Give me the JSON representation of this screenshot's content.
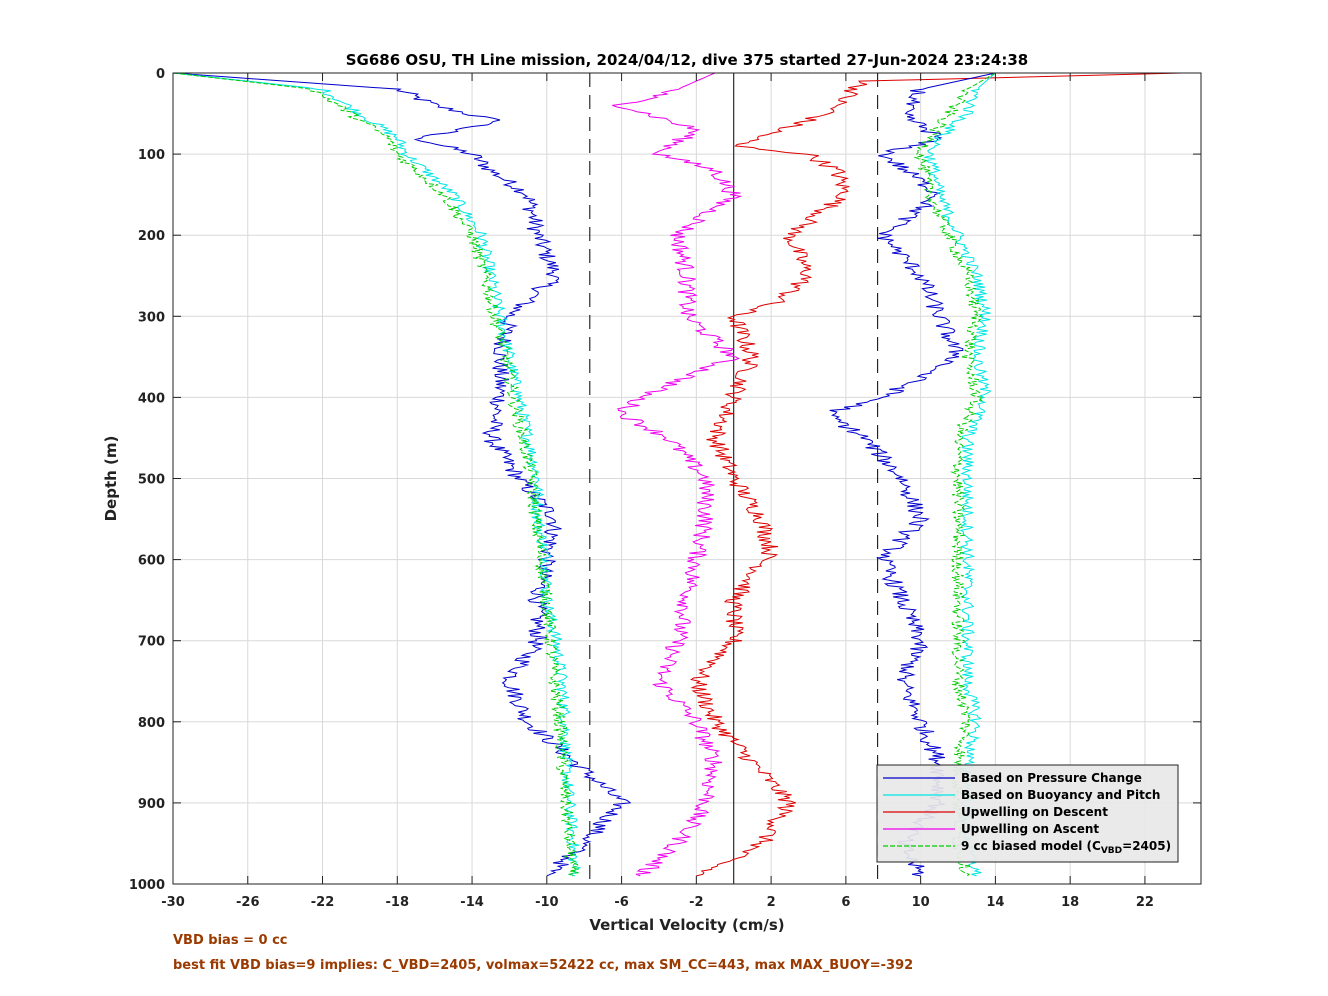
{
  "chart_data": {
    "type": "line",
    "title": "SG686 OSU, TH Line mission, 2024/04/12, dive 375 started 27-Jun-2024 23:24:38",
    "xlabel": "Vertical Velocity (cm/s)",
    "ylabel": "Depth (m)",
    "xlim": [
      -30,
      25
    ],
    "ylim": [
      1000,
      0
    ],
    "y_reversed": true,
    "grid": true,
    "xticks": [
      -30,
      -26,
      -22,
      -18,
      -14,
      -10,
      -6,
      -2,
      2,
      6,
      10,
      14,
      18,
      22
    ],
    "yticks": [
      0,
      100,
      200,
      300,
      400,
      500,
      600,
      700,
      800,
      900,
      1000
    ],
    "reference_lines": {
      "solid_vertical_x": 0,
      "dashed_vertical_x": [
        -7.7,
        7.7
      ]
    },
    "legend_position": "bottom-right",
    "series": [
      {
        "name": "Based on Pressure Change",
        "color": "#0000cc",
        "depth": [
          0,
          20,
          40,
          60,
          80,
          100,
          120,
          150,
          200,
          250,
          300,
          350,
          400,
          450,
          500,
          550,
          600,
          650,
          700,
          750,
          800,
          850,
          900,
          950,
          990
        ],
        "velocity": [
          -30,
          -18,
          -16,
          -12.5,
          -17,
          -14,
          -13,
          -11,
          -10.5,
          -9.5,
          -12,
          -12.5,
          -12.5,
          -13,
          -11.5,
          -9.5,
          -10,
          -10.5,
          -10.5,
          -12,
          -11,
          -8.5,
          -6,
          -8,
          -10
        ]
      },
      {
        "name": "Based on Buoyancy and Pitch",
        "color": "#00e5e5",
        "depth": [
          0,
          20,
          50,
          80,
          100,
          150,
          200,
          250,
          300,
          350,
          400,
          450,
          500,
          550,
          600,
          650,
          700,
          750,
          800,
          850,
          900,
          950,
          990
        ],
        "velocity": [
          -30,
          -22,
          -20,
          -18,
          -17.5,
          -15,
          -13.5,
          -13,
          -12.5,
          -12,
          -11.5,
          -11,
          -10.5,
          -10.5,
          -10,
          -10,
          -9.5,
          -9.2,
          -9,
          -9,
          -8.8,
          -8.6,
          -8.5
        ]
      },
      {
        "name": "Upwelling on Descent",
        "color": "#dd0000",
        "depth": [
          0,
          10,
          50,
          90,
          100,
          120,
          150,
          200,
          250,
          280,
          300,
          350,
          400,
          450,
          500,
          550,
          590,
          650,
          700,
          750,
          800,
          850,
          900,
          950,
          990
        ],
        "velocity": [
          24,
          7,
          5,
          0,
          4,
          5.5,
          6,
          3,
          4,
          2.5,
          0,
          1,
          0,
          -1,
          0,
          1.5,
          2,
          0,
          0,
          -2,
          -1,
          1,
          3,
          1.5,
          -2
        ]
      },
      {
        "name": "Upwelling on Ascent",
        "color": "#ee00ee",
        "depth": [
          0,
          20,
          40,
          70,
          100,
          120,
          150,
          200,
          250,
          300,
          350,
          400,
          420,
          450,
          500,
          550,
          600,
          650,
          700,
          750,
          800,
          850,
          900,
          950,
          990
        ],
        "velocity": [
          -1,
          -3,
          -6,
          -2,
          -4,
          -1,
          0,
          -3,
          -2.5,
          -2.5,
          0,
          -5,
          -6,
          -3.5,
          -1.5,
          -1.5,
          -2,
          -2.5,
          -3,
          -4,
          -2,
          -1,
          -1.5,
          -3,
          -5
        ]
      },
      {
        "name": "9 cc biased model (C_VBD=2405)",
        "color": "#00cc00",
        "depth": [
          0,
          20,
          50,
          80,
          100,
          150,
          200,
          250,
          300,
          350,
          400,
          450,
          500,
          550,
          600,
          650,
          700,
          750,
          800,
          850,
          900,
          950,
          990
        ],
        "velocity": [
          -30,
          -22.5,
          -20.5,
          -18.5,
          -18,
          -15.5,
          -14,
          -13.3,
          -12.8,
          -12.2,
          -11.8,
          -11.3,
          -10.8,
          -10.6,
          -10.3,
          -10,
          -9.8,
          -9.6,
          -9.3,
          -9.2,
          -9,
          -8.8,
          -8.6
        ]
      },
      {
        "name": "Based on Pressure Change",
        "color": "#0000cc",
        "depth": [
          0,
          20,
          50,
          80,
          100,
          150,
          200,
          250,
          300,
          350,
          400,
          420,
          450,
          500,
          550,
          600,
          650,
          700,
          750,
          800,
          850,
          900,
          950,
          990
        ],
        "velocity": [
          14,
          10,
          9,
          11,
          8,
          11,
          8,
          10,
          11,
          12,
          8,
          5,
          7,
          9,
          10,
          8,
          9,
          10,
          9,
          10,
          11,
          11,
          9,
          10
        ]
      },
      {
        "name": "Based on Buoyancy and Pitch",
        "color": "#00e5e5",
        "depth": [
          0,
          20,
          50,
          80,
          100,
          150,
          200,
          250,
          300,
          350,
          400,
          450,
          500,
          550,
          600,
          650,
          700,
          750,
          800,
          850,
          900,
          950,
          990
        ],
        "velocity": [
          14,
          13,
          12.5,
          11,
          10.5,
          11,
          12,
          13,
          13.5,
          13,
          13.5,
          12.5,
          12.5,
          12.5,
          12.5,
          12.5,
          12.5,
          12.5,
          13,
          12.5,
          12.5,
          12.5,
          13
        ]
      },
      {
        "name": "9 cc biased model (C_VBD=2405)",
        "color": "#00cc00",
        "depth": [
          0,
          20,
          50,
          80,
          100,
          150,
          200,
          250,
          300,
          350,
          400,
          450,
          500,
          550,
          600,
          650,
          700,
          750,
          800,
          850,
          900,
          950,
          990
        ],
        "velocity": [
          14,
          12.5,
          11.5,
          10.5,
          10,
          10.5,
          11.5,
          12.5,
          13,
          12.5,
          13,
          12,
          12,
          12,
          12,
          12,
          12,
          12,
          12.5,
          12,
          12,
          12,
          12.5
        ]
      }
    ],
    "legend": [
      {
        "label": "Based on Pressure Change",
        "color": "#0000cc",
        "style": "solid"
      },
      {
        "label": "Based on Buoyancy and Pitch",
        "color": "#00e5e5",
        "style": "solid"
      },
      {
        "label": "Upwelling on Descent",
        "color": "#dd0000",
        "style": "solid"
      },
      {
        "label": "Upwelling on Ascent",
        "color": "#ee00ee",
        "style": "solid"
      },
      {
        "label": "9 cc biased model (C",
        "sub": "VBD",
        "suffix": "=2405)",
        "color": "#00cc00",
        "style": "dashed"
      }
    ]
  },
  "notes": {
    "line1": "VBD bias = 0 cc",
    "line2": "best fit VBD bias=9 implies: C_VBD=2405, volmax=52422 cc, max SM_CC=443, max MAX_BUOY=-392"
  }
}
